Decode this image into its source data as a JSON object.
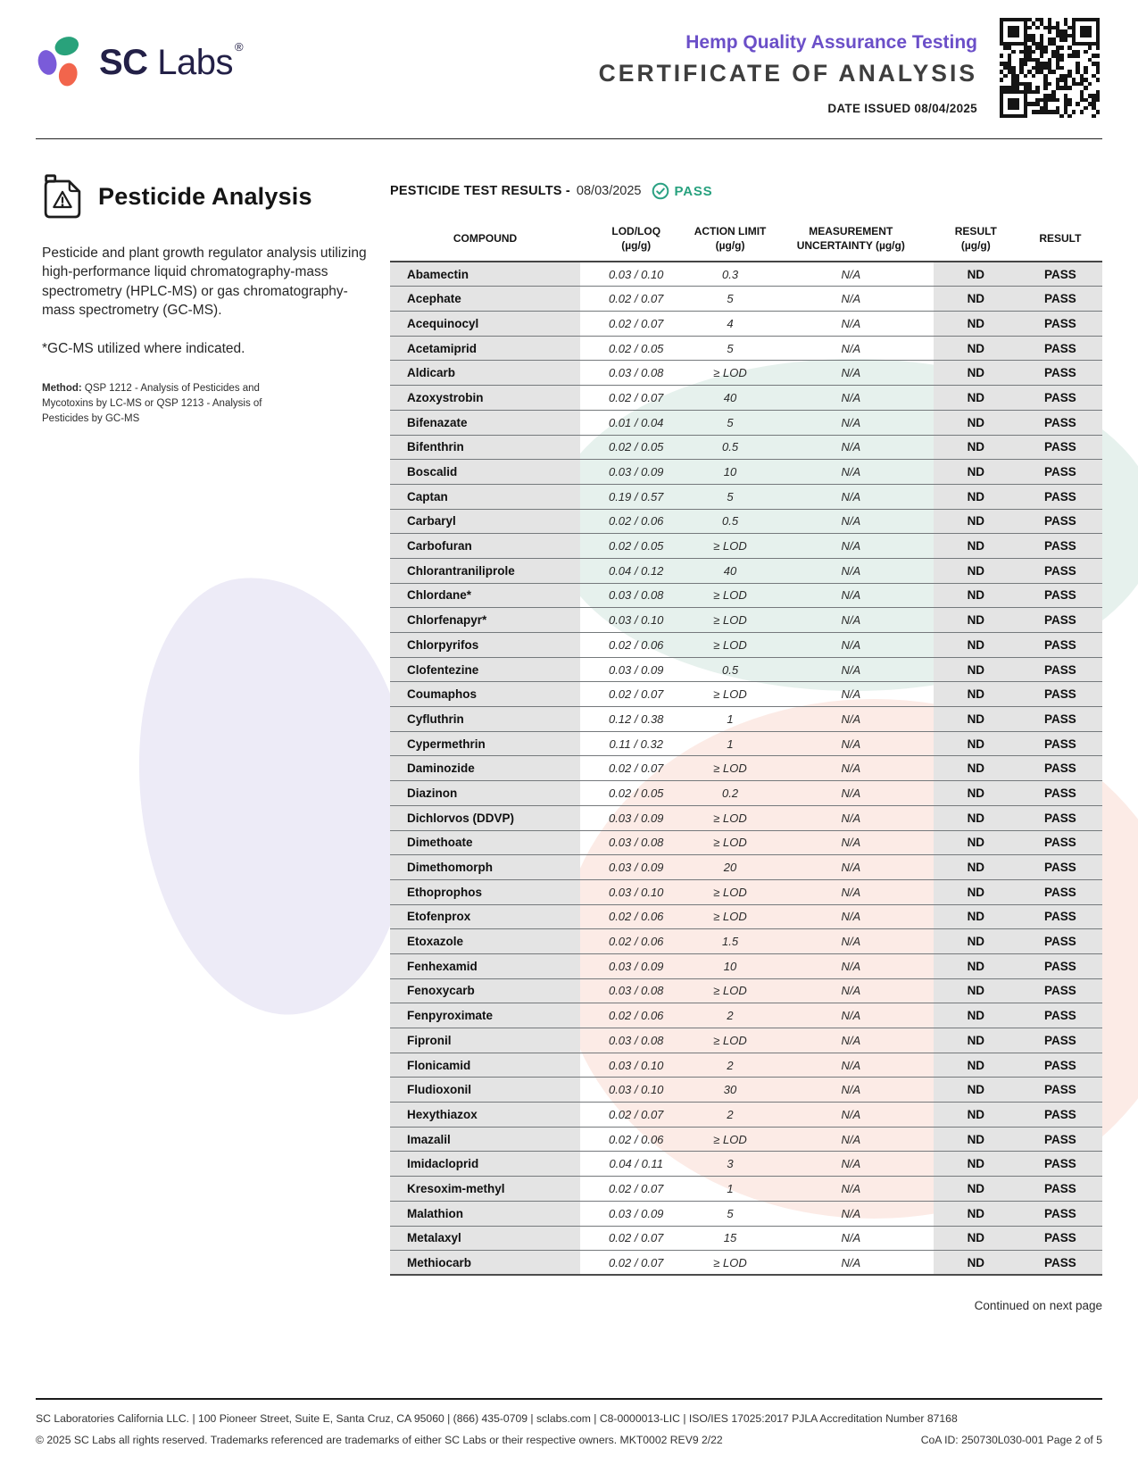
{
  "header": {
    "logo_bold": "SC",
    "logo_regular": "Labs",
    "logo_reg_mark": "®",
    "program": "Hemp Quality Assurance Testing",
    "title": "CERTIFICATE OF ANALYSIS",
    "date_issued": "DATE ISSUED 08/04/2025"
  },
  "section": {
    "heading": "Pesticide Analysis",
    "description": "Pesticide and plant growth regulator analysis utilizing high-performance liquid chromatography-mass spectrometry (HPLC-MS) or gas chromatography-mass spectrometry (GC-MS).",
    "note": "*GC-MS utilized where indicated.",
    "method_label": "Method:",
    "method_text": " QSP 1212 - Analysis of Pesticides and Mycotoxins by LC-MS or QSP 1213 - Analysis of Pesticides by GC-MS"
  },
  "results": {
    "title_prefix": "PESTICIDE TEST RESULTS -",
    "date": "08/03/2025",
    "status": "PASS"
  },
  "table": {
    "columns": [
      {
        "line1": "COMPOUND",
        "line2": ""
      },
      {
        "line1": "LOD/LOQ",
        "line2": "(µg/g)"
      },
      {
        "line1": "ACTION LIMIT",
        "line2": "(µg/g)"
      },
      {
        "line1": "MEASUREMENT",
        "line2": "UNCERTAINTY (µg/g)"
      },
      {
        "line1": "RESULT",
        "line2": "(µg/g)"
      },
      {
        "line1": "RESULT",
        "line2": ""
      }
    ],
    "rows": [
      {
        "compound": "Abamectin",
        "lod_loq": "0.03 / 0.10",
        "action_limit": "0.3",
        "uncertainty": "N/A",
        "result": "ND",
        "status": "PASS"
      },
      {
        "compound": "Acephate",
        "lod_loq": "0.02 / 0.07",
        "action_limit": "5",
        "uncertainty": "N/A",
        "result": "ND",
        "status": "PASS"
      },
      {
        "compound": "Acequinocyl",
        "lod_loq": "0.02 / 0.07",
        "action_limit": "4",
        "uncertainty": "N/A",
        "result": "ND",
        "status": "PASS"
      },
      {
        "compound": "Acetamiprid",
        "lod_loq": "0.02 / 0.05",
        "action_limit": "5",
        "uncertainty": "N/A",
        "result": "ND",
        "status": "PASS"
      },
      {
        "compound": "Aldicarb",
        "lod_loq": "0.03 / 0.08",
        "action_limit": "≥ LOD",
        "uncertainty": "N/A",
        "result": "ND",
        "status": "PASS"
      },
      {
        "compound": "Azoxystrobin",
        "lod_loq": "0.02 / 0.07",
        "action_limit": "40",
        "uncertainty": "N/A",
        "result": "ND",
        "status": "PASS"
      },
      {
        "compound": "Bifenazate",
        "lod_loq": "0.01 / 0.04",
        "action_limit": "5",
        "uncertainty": "N/A",
        "result": "ND",
        "status": "PASS"
      },
      {
        "compound": "Bifenthrin",
        "lod_loq": "0.02 / 0.05",
        "action_limit": "0.5",
        "uncertainty": "N/A",
        "result": "ND",
        "status": "PASS"
      },
      {
        "compound": "Boscalid",
        "lod_loq": "0.03 / 0.09",
        "action_limit": "10",
        "uncertainty": "N/A",
        "result": "ND",
        "status": "PASS"
      },
      {
        "compound": "Captan",
        "lod_loq": "0.19 / 0.57",
        "action_limit": "5",
        "uncertainty": "N/A",
        "result": "ND",
        "status": "PASS"
      },
      {
        "compound": "Carbaryl",
        "lod_loq": "0.02 / 0.06",
        "action_limit": "0.5",
        "uncertainty": "N/A",
        "result": "ND",
        "status": "PASS"
      },
      {
        "compound": "Carbofuran",
        "lod_loq": "0.02 / 0.05",
        "action_limit": "≥ LOD",
        "uncertainty": "N/A",
        "result": "ND",
        "status": "PASS"
      },
      {
        "compound": "Chlorantraniliprole",
        "lod_loq": "0.04 / 0.12",
        "action_limit": "40",
        "uncertainty": "N/A",
        "result": "ND",
        "status": "PASS"
      },
      {
        "compound": "Chlordane*",
        "lod_loq": "0.03 / 0.08",
        "action_limit": "≥ LOD",
        "uncertainty": "N/A",
        "result": "ND",
        "status": "PASS"
      },
      {
        "compound": "Chlorfenapyr*",
        "lod_loq": "0.03 / 0.10",
        "action_limit": "≥ LOD",
        "uncertainty": "N/A",
        "result": "ND",
        "status": "PASS"
      },
      {
        "compound": "Chlorpyrifos",
        "lod_loq": "0.02 / 0.06",
        "action_limit": "≥ LOD",
        "uncertainty": "N/A",
        "result": "ND",
        "status": "PASS"
      },
      {
        "compound": "Clofentezine",
        "lod_loq": "0.03 / 0.09",
        "action_limit": "0.5",
        "uncertainty": "N/A",
        "result": "ND",
        "status": "PASS"
      },
      {
        "compound": "Coumaphos",
        "lod_loq": "0.02 / 0.07",
        "action_limit": "≥ LOD",
        "uncertainty": "N/A",
        "result": "ND",
        "status": "PASS"
      },
      {
        "compound": "Cyfluthrin",
        "lod_loq": "0.12 / 0.38",
        "action_limit": "1",
        "uncertainty": "N/A",
        "result": "ND",
        "status": "PASS"
      },
      {
        "compound": "Cypermethrin",
        "lod_loq": "0.11 / 0.32",
        "action_limit": "1",
        "uncertainty": "N/A",
        "result": "ND",
        "status": "PASS"
      },
      {
        "compound": "Daminozide",
        "lod_loq": "0.02 / 0.07",
        "action_limit": "≥ LOD",
        "uncertainty": "N/A",
        "result": "ND",
        "status": "PASS"
      },
      {
        "compound": "Diazinon",
        "lod_loq": "0.02 / 0.05",
        "action_limit": "0.2",
        "uncertainty": "N/A",
        "result": "ND",
        "status": "PASS"
      },
      {
        "compound": "Dichlorvos (DDVP)",
        "lod_loq": "0.03 / 0.09",
        "action_limit": "≥ LOD",
        "uncertainty": "N/A",
        "result": "ND",
        "status": "PASS"
      },
      {
        "compound": "Dimethoate",
        "lod_loq": "0.03 / 0.08",
        "action_limit": "≥ LOD",
        "uncertainty": "N/A",
        "result": "ND",
        "status": "PASS"
      },
      {
        "compound": "Dimethomorph",
        "lod_loq": "0.03 / 0.09",
        "action_limit": "20",
        "uncertainty": "N/A",
        "result": "ND",
        "status": "PASS"
      },
      {
        "compound": "Ethoprophos",
        "lod_loq": "0.03 / 0.10",
        "action_limit": "≥ LOD",
        "uncertainty": "N/A",
        "result": "ND",
        "status": "PASS"
      },
      {
        "compound": "Etofenprox",
        "lod_loq": "0.02 / 0.06",
        "action_limit": "≥ LOD",
        "uncertainty": "N/A",
        "result": "ND",
        "status": "PASS"
      },
      {
        "compound": "Etoxazole",
        "lod_loq": "0.02 / 0.06",
        "action_limit": "1.5",
        "uncertainty": "N/A",
        "result": "ND",
        "status": "PASS"
      },
      {
        "compound": "Fenhexamid",
        "lod_loq": "0.03 / 0.09",
        "action_limit": "10",
        "uncertainty": "N/A",
        "result": "ND",
        "status": "PASS"
      },
      {
        "compound": "Fenoxycarb",
        "lod_loq": "0.03 / 0.08",
        "action_limit": "≥ LOD",
        "uncertainty": "N/A",
        "result": "ND",
        "status": "PASS"
      },
      {
        "compound": "Fenpyroximate",
        "lod_loq": "0.02 / 0.06",
        "action_limit": "2",
        "uncertainty": "N/A",
        "result": "ND",
        "status": "PASS"
      },
      {
        "compound": "Fipronil",
        "lod_loq": "0.03 / 0.08",
        "action_limit": "≥ LOD",
        "uncertainty": "N/A",
        "result": "ND",
        "status": "PASS"
      },
      {
        "compound": "Flonicamid",
        "lod_loq": "0.03 / 0.10",
        "action_limit": "2",
        "uncertainty": "N/A",
        "result": "ND",
        "status": "PASS"
      },
      {
        "compound": "Fludioxonil",
        "lod_loq": "0.03 / 0.10",
        "action_limit": "30",
        "uncertainty": "N/A",
        "result": "ND",
        "status": "PASS"
      },
      {
        "compound": "Hexythiazox",
        "lod_loq": "0.02 / 0.07",
        "action_limit": "2",
        "uncertainty": "N/A",
        "result": "ND",
        "status": "PASS"
      },
      {
        "compound": "Imazalil",
        "lod_loq": "0.02 / 0.06",
        "action_limit": "≥ LOD",
        "uncertainty": "N/A",
        "result": "ND",
        "status": "PASS"
      },
      {
        "compound": "Imidacloprid",
        "lod_loq": "0.04 / 0.11",
        "action_limit": "3",
        "uncertainty": "N/A",
        "result": "ND",
        "status": "PASS"
      },
      {
        "compound": "Kresoxim-methyl",
        "lod_loq": "0.02 / 0.07",
        "action_limit": "1",
        "uncertainty": "N/A",
        "result": "ND",
        "status": "PASS"
      },
      {
        "compound": "Malathion",
        "lod_loq": "0.03 / 0.09",
        "action_limit": "5",
        "uncertainty": "N/A",
        "result": "ND",
        "status": "PASS"
      },
      {
        "compound": "Metalaxyl",
        "lod_loq": "0.02 / 0.07",
        "action_limit": "15",
        "uncertainty": "N/A",
        "result": "ND",
        "status": "PASS"
      },
      {
        "compound": "Methiocarb",
        "lod_loq": "0.02 / 0.07",
        "action_limit": "≥ LOD",
        "uncertainty": "N/A",
        "result": "ND",
        "status": "PASS"
      }
    ]
  },
  "continued_note": "Continued on next page",
  "footer": {
    "line1": "SC Laboratories California LLC. | 100 Pioneer Street, Suite E, Santa Cruz, CA 95060 | (866) 435-0709 | sclabs.com | C8-0000013-LIC | ISO/IES 17025:2017 PJLA Accreditation Number 87168",
    "line2": "© 2025 SC Labs all rights reserved. Trademarks referenced are trademarks of either SC Labs or their respective owners. MKT0002 REV9 2/22",
    "coa_id": "CoA ID: 250730L030-001 Page 2 of 5"
  },
  "colors": {
    "accent_purple": "#6b4fc8",
    "pass_teal": "#27a17e",
    "logo_navy": "#232047",
    "logo_purple": "#7a5bd9",
    "logo_green": "#29a27b",
    "logo_orange": "#f2654c",
    "row_gray": "#e4e4e4"
  }
}
